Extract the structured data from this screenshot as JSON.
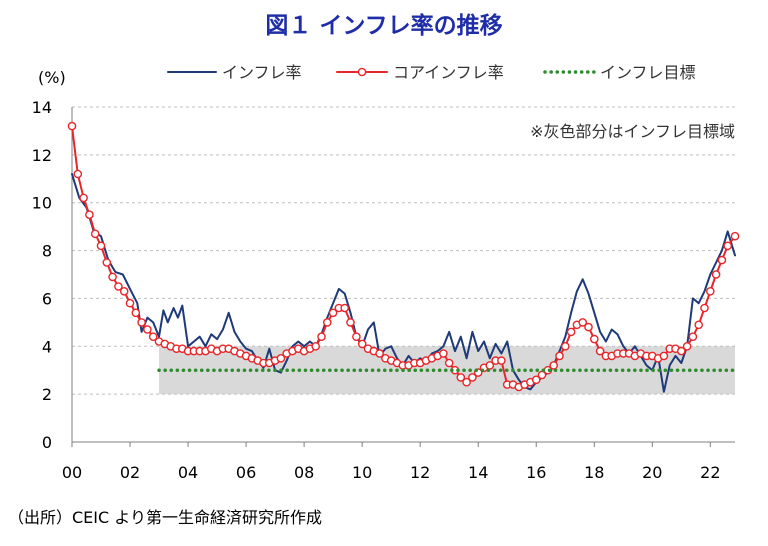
{
  "title": "図１ インフレ率の推移",
  "source": "（出所）CEIC より第一生命経済研究所作成",
  "colors": {
    "headline": "#1f3a78",
    "core": "#e8262a",
    "target": "#2e8b2e",
    "band": "#d9d9d9",
    "title": "#1f2ea8"
  },
  "chart_data": {
    "type": "line",
    "ylabel": "(%)",
    "ylim": [
      0,
      14
    ],
    "yticks": [
      "0",
      "2",
      "4",
      "6",
      "8",
      "10",
      "12",
      "14"
    ],
    "xlim": [
      2000,
      2022.85
    ],
    "xticks": [
      "00",
      "02",
      "04",
      "06",
      "08",
      "10",
      "12",
      "14",
      "16",
      "18",
      "20",
      "22"
    ],
    "grid": true,
    "legend_position": "top-right",
    "annotation": "※灰色部分はインフレ目標域",
    "target_band": {
      "x_start": 2003,
      "x_end": 2022.85,
      "y_low": 2,
      "y_high": 4
    },
    "series": [
      {
        "name": "インフレ率",
        "style": "line",
        "points": [
          [
            2000.0,
            11.2
          ],
          [
            2000.25,
            10.2
          ],
          [
            2000.5,
            9.8
          ],
          [
            2000.75,
            8.8
          ],
          [
            2001.0,
            8.6
          ],
          [
            2001.25,
            7.6
          ],
          [
            2001.5,
            7.1
          ],
          [
            2001.75,
            7.0
          ],
          [
            2002.0,
            6.4
          ],
          [
            2002.25,
            5.8
          ],
          [
            2002.4,
            4.6
          ],
          [
            2002.6,
            5.2
          ],
          [
            2002.8,
            5.0
          ],
          [
            2003.0,
            4.4
          ],
          [
            2003.15,
            5.5
          ],
          [
            2003.3,
            5.0
          ],
          [
            2003.5,
            5.6
          ],
          [
            2003.65,
            5.2
          ],
          [
            2003.8,
            5.7
          ],
          [
            2004.0,
            4.0
          ],
          [
            2004.2,
            4.2
          ],
          [
            2004.4,
            4.4
          ],
          [
            2004.6,
            4.0
          ],
          [
            2004.8,
            4.5
          ],
          [
            2005.0,
            4.3
          ],
          [
            2005.2,
            4.7
          ],
          [
            2005.4,
            5.4
          ],
          [
            2005.6,
            4.6
          ],
          [
            2005.8,
            4.2
          ],
          [
            2006.0,
            3.9
          ],
          [
            2006.2,
            3.8
          ],
          [
            2006.4,
            3.4
          ],
          [
            2006.6,
            3.1
          ],
          [
            2006.8,
            3.9
          ],
          [
            2007.0,
            3.0
          ],
          [
            2007.2,
            2.9
          ],
          [
            2007.4,
            3.4
          ],
          [
            2007.6,
            4.0
          ],
          [
            2007.8,
            4.2
          ],
          [
            2008.0,
            4.0
          ],
          [
            2008.2,
            4.2
          ],
          [
            2008.4,
            4.0
          ],
          [
            2008.6,
            4.5
          ],
          [
            2008.8,
            5.2
          ],
          [
            2009.0,
            5.8
          ],
          [
            2009.2,
            6.4
          ],
          [
            2009.4,
            6.2
          ],
          [
            2009.6,
            5.4
          ],
          [
            2009.8,
            4.4
          ],
          [
            2010.0,
            4.0
          ],
          [
            2010.2,
            4.7
          ],
          [
            2010.4,
            5.0
          ],
          [
            2010.6,
            3.6
          ],
          [
            2010.8,
            3.9
          ],
          [
            2011.0,
            4.0
          ],
          [
            2011.2,
            3.5
          ],
          [
            2011.4,
            3.2
          ],
          [
            2011.6,
            3.6
          ],
          [
            2011.8,
            3.3
          ],
          [
            2012.0,
            3.5
          ],
          [
            2012.2,
            3.3
          ],
          [
            2012.4,
            3.7
          ],
          [
            2012.6,
            3.8
          ],
          [
            2012.8,
            4.0
          ],
          [
            2013.0,
            4.6
          ],
          [
            2013.2,
            3.8
          ],
          [
            2013.4,
            4.4
          ],
          [
            2013.6,
            3.5
          ],
          [
            2013.8,
            4.6
          ],
          [
            2014.0,
            3.8
          ],
          [
            2014.2,
            4.2
          ],
          [
            2014.4,
            3.5
          ],
          [
            2014.6,
            4.1
          ],
          [
            2014.8,
            3.7
          ],
          [
            2015.0,
            4.2
          ],
          [
            2015.2,
            3.0
          ],
          [
            2015.4,
            2.6
          ],
          [
            2015.6,
            2.3
          ],
          [
            2015.8,
            2.2
          ],
          [
            2016.0,
            2.5
          ],
          [
            2016.2,
            2.7
          ],
          [
            2016.4,
            2.9
          ],
          [
            2016.6,
            3.2
          ],
          [
            2016.8,
            3.8
          ],
          [
            2017.0,
            4.4
          ],
          [
            2017.2,
            5.4
          ],
          [
            2017.4,
            6.3
          ],
          [
            2017.6,
            6.8
          ],
          [
            2017.8,
            6.2
          ],
          [
            2018.0,
            5.4
          ],
          [
            2018.2,
            4.6
          ],
          [
            2018.4,
            4.2
          ],
          [
            2018.6,
            4.7
          ],
          [
            2018.8,
            4.5
          ],
          [
            2019.0,
            4.0
          ],
          [
            2019.2,
            3.7
          ],
          [
            2019.4,
            4.0
          ],
          [
            2019.6,
            3.6
          ],
          [
            2019.8,
            3.2
          ],
          [
            2020.0,
            3.0
          ],
          [
            2020.2,
            3.6
          ],
          [
            2020.4,
            2.1
          ],
          [
            2020.6,
            3.2
          ],
          [
            2020.8,
            3.6
          ],
          [
            2021.0,
            3.3
          ],
          [
            2021.2,
            4.0
          ],
          [
            2021.4,
            6.0
          ],
          [
            2021.6,
            5.8
          ],
          [
            2021.8,
            6.3
          ],
          [
            2022.0,
            7.0
          ],
          [
            2022.2,
            7.5
          ],
          [
            2022.4,
            8.0
          ],
          [
            2022.6,
            8.8
          ],
          [
            2022.85,
            7.8
          ]
        ]
      },
      {
        "name": "コアインフレ率",
        "style": "line-marker",
        "points": [
          [
            2000.0,
            13.2
          ],
          [
            2000.2,
            11.2
          ],
          [
            2000.4,
            10.2
          ],
          [
            2000.6,
            9.5
          ],
          [
            2000.8,
            8.7
          ],
          [
            2001.0,
            8.2
          ],
          [
            2001.2,
            7.5
          ],
          [
            2001.4,
            6.9
          ],
          [
            2001.6,
            6.5
          ],
          [
            2001.8,
            6.3
          ],
          [
            2002.0,
            5.8
          ],
          [
            2002.2,
            5.4
          ],
          [
            2002.4,
            5.0
          ],
          [
            2002.6,
            4.7
          ],
          [
            2002.8,
            4.4
          ],
          [
            2003.0,
            4.2
          ],
          [
            2003.2,
            4.1
          ],
          [
            2003.4,
            4.0
          ],
          [
            2003.6,
            3.9
          ],
          [
            2003.8,
            3.9
          ],
          [
            2004.0,
            3.8
          ],
          [
            2004.2,
            3.8
          ],
          [
            2004.4,
            3.8
          ],
          [
            2004.6,
            3.8
          ],
          [
            2004.8,
            3.9
          ],
          [
            2005.0,
            3.8
          ],
          [
            2005.2,
            3.9
          ],
          [
            2005.4,
            3.9
          ],
          [
            2005.6,
            3.8
          ],
          [
            2005.8,
            3.7
          ],
          [
            2006.0,
            3.6
          ],
          [
            2006.2,
            3.5
          ],
          [
            2006.4,
            3.4
          ],
          [
            2006.6,
            3.3
          ],
          [
            2006.8,
            3.3
          ],
          [
            2007.0,
            3.4
          ],
          [
            2007.2,
            3.5
          ],
          [
            2007.4,
            3.7
          ],
          [
            2007.6,
            3.8
          ],
          [
            2007.8,
            3.9
          ],
          [
            2008.0,
            3.8
          ],
          [
            2008.2,
            3.9
          ],
          [
            2008.4,
            4.0
          ],
          [
            2008.6,
            4.4
          ],
          [
            2008.8,
            5.0
          ],
          [
            2009.0,
            5.4
          ],
          [
            2009.2,
            5.6
          ],
          [
            2009.4,
            5.6
          ],
          [
            2009.6,
            5.0
          ],
          [
            2009.8,
            4.4
          ],
          [
            2010.0,
            4.1
          ],
          [
            2010.2,
            3.9
          ],
          [
            2010.4,
            3.8
          ],
          [
            2010.6,
            3.7
          ],
          [
            2010.8,
            3.5
          ],
          [
            2011.0,
            3.4
          ],
          [
            2011.2,
            3.3
          ],
          [
            2011.4,
            3.2
          ],
          [
            2011.6,
            3.2
          ],
          [
            2011.8,
            3.3
          ],
          [
            2012.0,
            3.3
          ],
          [
            2012.2,
            3.4
          ],
          [
            2012.4,
            3.5
          ],
          [
            2012.6,
            3.6
          ],
          [
            2012.8,
            3.7
          ],
          [
            2013.0,
            3.3
          ],
          [
            2013.2,
            3.0
          ],
          [
            2013.4,
            2.7
          ],
          [
            2013.6,
            2.5
          ],
          [
            2013.8,
            2.7
          ],
          [
            2014.0,
            2.9
          ],
          [
            2014.2,
            3.1
          ],
          [
            2014.4,
            3.2
          ],
          [
            2014.6,
            3.4
          ],
          [
            2014.8,
            3.4
          ],
          [
            2015.0,
            2.4
          ],
          [
            2015.2,
            2.4
          ],
          [
            2015.4,
            2.3
          ],
          [
            2015.6,
            2.4
          ],
          [
            2015.8,
            2.5
          ],
          [
            2016.0,
            2.6
          ],
          [
            2016.2,
            2.8
          ],
          [
            2016.4,
            3.0
          ],
          [
            2016.6,
            3.2
          ],
          [
            2016.8,
            3.6
          ],
          [
            2017.0,
            4.0
          ],
          [
            2017.2,
            4.6
          ],
          [
            2017.4,
            4.9
          ],
          [
            2017.6,
            5.0
          ],
          [
            2017.8,
            4.8
          ],
          [
            2018.0,
            4.3
          ],
          [
            2018.2,
            3.8
          ],
          [
            2018.4,
            3.6
          ],
          [
            2018.6,
            3.6
          ],
          [
            2018.8,
            3.7
          ],
          [
            2019.0,
            3.7
          ],
          [
            2019.2,
            3.7
          ],
          [
            2019.4,
            3.6
          ],
          [
            2019.6,
            3.7
          ],
          [
            2019.8,
            3.6
          ],
          [
            2020.0,
            3.6
          ],
          [
            2020.2,
            3.5
          ],
          [
            2020.4,
            3.6
          ],
          [
            2020.6,
            3.9
          ],
          [
            2020.8,
            3.9
          ],
          [
            2021.0,
            3.8
          ],
          [
            2021.2,
            4.0
          ],
          [
            2021.4,
            4.4
          ],
          [
            2021.6,
            4.9
          ],
          [
            2021.8,
            5.6
          ],
          [
            2022.0,
            6.3
          ],
          [
            2022.2,
            7.0
          ],
          [
            2022.4,
            7.6
          ],
          [
            2022.6,
            8.2
          ],
          [
            2022.85,
            8.6
          ]
        ]
      },
      {
        "name": "インフレ目標",
        "style": "dotted",
        "points": [
          [
            2003.0,
            3.0
          ],
          [
            2022.85,
            3.0
          ]
        ]
      }
    ]
  }
}
